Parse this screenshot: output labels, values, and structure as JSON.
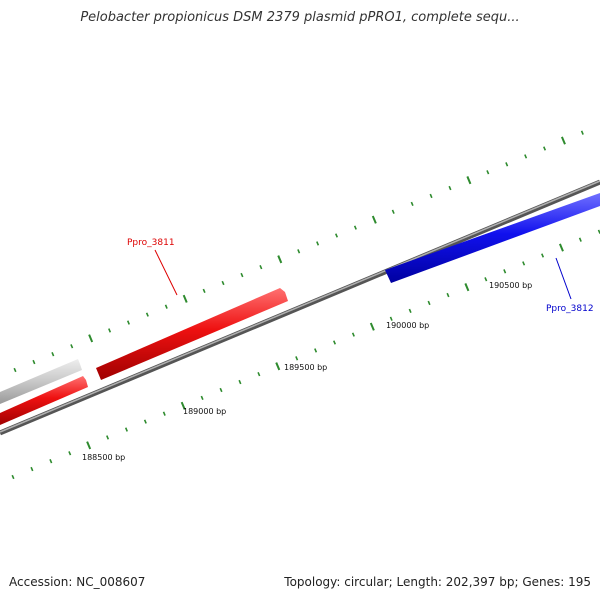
{
  "title": "Pelobacter propionicus DSM 2379 plasmid pPRO1, complete sequ...",
  "footer": {
    "accession": "Accession: NC_008607",
    "summary": "Topology: circular; Length: 202,397 bp; Genes: 195"
  },
  "colors": {
    "forward_gene": "#ee1111",
    "reverse_gene": "#1111ee",
    "other_gene": "#c8c8c8",
    "backbone": "#808080",
    "tick": "#2e8b2e"
  },
  "scale": {
    "labels": [
      "188500 bp",
      "189000 bp",
      "189500 bp",
      "190000 bp",
      "190500 bp"
    ]
  },
  "genes": [
    {
      "name": "Ppro_3811",
      "strand": "forward",
      "color": "#dd0000"
    },
    {
      "name": "Ppro_3812",
      "strand": "reverse",
      "color": "#0000cc"
    }
  ]
}
